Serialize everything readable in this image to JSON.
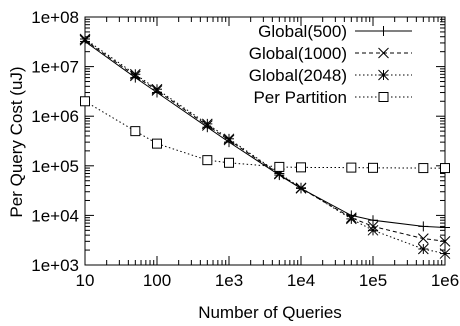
{
  "chart_data": {
    "type": "line",
    "title": "",
    "xlabel": "Number of Queries",
    "ylabel": "Per Query Cost (uJ)",
    "x_scale": "log",
    "y_scale": "log",
    "xlim": [
      10,
      1000000
    ],
    "ylim": [
      1000,
      100000000
    ],
    "x_ticks": [
      10,
      100,
      1000,
      10000,
      100000,
      1000000
    ],
    "x_tick_labels": [
      "10",
      "100",
      "1e3",
      "1e4",
      "1e5",
      "1e6"
    ],
    "y_ticks": [
      1000,
      10000,
      100000,
      1000000,
      10000000,
      100000000
    ],
    "y_tick_labels": [
      "1e+03",
      "1e+04",
      "1e+05",
      "1e+06",
      "1e+07",
      "1e+08"
    ],
    "grid": false,
    "legend_position": "top-right",
    "series": [
      {
        "name": "Global(500)",
        "marker": "plus",
        "line": "solid",
        "color": "#000000",
        "x": [
          10,
          50,
          100,
          500,
          1000,
          5000,
          10000,
          50000,
          100000,
          500000,
          1000000
        ],
        "y": [
          32000000,
          6000000,
          3000000,
          600000,
          300000,
          65000,
          35000,
          10000,
          8000,
          6000,
          5700
        ]
      },
      {
        "name": "Global(1000)",
        "marker": "x",
        "line": "dashed",
        "color": "#000000",
        "x": [
          10,
          50,
          100,
          500,
          1000,
          5000,
          10000,
          50000,
          100000,
          500000,
          1000000
        ],
        "y": [
          34000000,
          6500000,
          3300000,
          650000,
          330000,
          68000,
          35000,
          9000,
          6000,
          3400,
          3000
        ]
      },
      {
        "name": "Global(2048)",
        "marker": "asterisk",
        "line": "dotted",
        "color": "#000000",
        "x": [
          10,
          50,
          100,
          500,
          1000,
          5000,
          10000,
          50000,
          100000,
          500000,
          1000000
        ],
        "y": [
          36000000,
          7000000,
          3500000,
          700000,
          350000,
          70000,
          36000,
          8500,
          5000,
          2100,
          1700
        ]
      },
      {
        "name": "Per Partition",
        "marker": "square",
        "line": "dotted",
        "color": "#000000",
        "x": [
          10,
          50,
          100,
          500,
          1000,
          5000,
          10000,
          50000,
          100000,
          500000,
          1000000
        ],
        "y": [
          2000000,
          500000,
          280000,
          130000,
          115000,
          95000,
          93000,
          92000,
          91000,
          90000,
          90000
        ]
      }
    ]
  }
}
